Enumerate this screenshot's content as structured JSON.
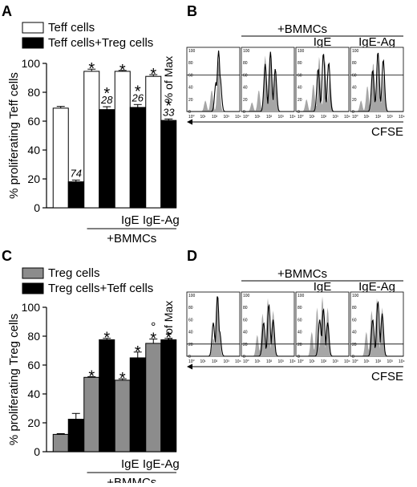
{
  "panels": {
    "A": "A",
    "B": "B",
    "C": "C",
    "D": "D"
  },
  "colors": {
    "white_bar": "#ffffff",
    "black_bar": "#000000",
    "gray_bar": "#8c8c8c",
    "histogram_fill": "#a6a6a6"
  },
  "chart_data": [
    {
      "panel": "A",
      "type": "bar",
      "ylabel": "% proliferating Teff cells",
      "ylim": [
        0,
        100
      ],
      "yticks": [
        "0",
        "20",
        "40",
        "60",
        "80",
        "100"
      ],
      "legend_position": "top-left",
      "categories": [
        "",
        "+BMMCs",
        "+BMMCs IgE",
        "+BMMCs IgE-Ag"
      ],
      "category_labels": [
        "",
        "",
        "IgE",
        "IgE-Ag"
      ],
      "group_label": "+BMMCs",
      "series": [
        {
          "name": "Teff cells",
          "style": "white",
          "values": [
            69,
            94.5,
            94.5,
            91
          ],
          "errors": [
            1.2,
            1.5,
            0.6,
            1.2
          ],
          "marks": [
            "",
            "*",
            "*",
            "*"
          ],
          "labels": [
            "",
            "",
            "",
            ""
          ]
        },
        {
          "name": "Teff cells+Treg cells",
          "style": "black",
          "values": [
            18,
            68,
            69.5,
            60.5
          ],
          "errors": [
            1.2,
            2,
            2,
            1
          ],
          "marks": [
            "",
            "*",
            "*",
            "*"
          ],
          "labels": [
            "74",
            "28",
            "26",
            "33"
          ]
        }
      ]
    },
    {
      "panel": "C",
      "type": "bar",
      "ylabel": "% proliferating Treg cells",
      "ylim": [
        0,
        100
      ],
      "yticks": [
        "0",
        "20",
        "40",
        "60",
        "80",
        "100"
      ],
      "legend_position": "top-left",
      "categories": [
        "",
        "+BMMCs",
        "+BMMCs IgE",
        "+BMMCs IgE-Ag"
      ],
      "category_labels": [
        "",
        "",
        "IgE",
        "IgE-Ag"
      ],
      "group_label": "+BMMCs",
      "series": [
        {
          "name": "Treg cells",
          "style": "gray",
          "values": [
            12,
            51.5,
            49.5,
            75
          ],
          "errors": [
            0.5,
            0.5,
            1,
            3
          ],
          "marks": [
            "",
            "*",
            "*",
            "*"
          ],
          "extra_marks": [
            "",
            "",
            "",
            "°"
          ],
          "labels": [
            "",
            "",
            "",
            ""
          ]
        },
        {
          "name": "Treg cells+Teff cells",
          "style": "black",
          "values": [
            22.5,
            77.5,
            65,
            77.5
          ],
          "errors": [
            4,
            1,
            4,
            1
          ],
          "marks": [
            "",
            "*",
            "*",
            "*"
          ],
          "labels": [
            "",
            "",
            "",
            ""
          ]
        }
      ]
    }
  ],
  "histograms": [
    {
      "panel": "B",
      "group_label": "+BMMCs",
      "ylabel": "% of Max",
      "xlabel": "CFSE",
      "yticks": [
        "0",
        "20",
        "40",
        "60",
        "80",
        "100"
      ],
      "xticks": [
        "10⁰",
        "10¹",
        "10²",
        "10³",
        "10⁴"
      ],
      "subpanel_labels": [
        "",
        "",
        "IgE",
        "IgE-Ag"
      ],
      "subpanels": [
        {
          "gate_y": 60,
          "black_peaks": [
            [
              0.55,
              48
            ],
            [
              0.6,
              100
            ],
            [
              0.63,
              55
            ]
          ],
          "gray_peaks": [
            [
              0.35,
              18
            ],
            [
              0.47,
              35
            ],
            [
              0.6,
              85
            ]
          ]
        },
        {
          "gate_y": 60,
          "black_peaks": [
            [
              0.45,
              78
            ],
            [
              0.55,
              98
            ],
            [
              0.64,
              70
            ]
          ],
          "gray_peaks": [
            [
              0.2,
              15
            ],
            [
              0.33,
              35
            ],
            [
              0.45,
              92
            ],
            [
              0.55,
              88
            ],
            [
              0.64,
              60
            ]
          ]
        },
        {
          "gate_y": 60,
          "black_peaks": [
            [
              0.42,
              70
            ],
            [
              0.52,
              96
            ],
            [
              0.62,
              80
            ]
          ],
          "gray_peaks": [
            [
              0.2,
              20
            ],
            [
              0.33,
              45
            ],
            [
              0.44,
              90
            ],
            [
              0.55,
              84
            ],
            [
              0.64,
              55
            ]
          ]
        },
        {
          "gate_y": 60,
          "black_peaks": [
            [
              0.42,
              68
            ],
            [
              0.52,
              98
            ],
            [
              0.62,
              85
            ]
          ],
          "gray_peaks": [
            [
              0.2,
              18
            ],
            [
              0.32,
              42
            ],
            [
              0.43,
              80
            ],
            [
              0.53,
              90
            ],
            [
              0.63,
              62
            ]
          ]
        }
      ]
    },
    {
      "panel": "D",
      "group_label": "+BMMCs",
      "ylabel": "% of Max",
      "xlabel": "CFSE",
      "yticks": [
        "0",
        "20",
        "40",
        "60",
        "80",
        "100"
      ],
      "xticks": [
        "10⁰",
        "10¹",
        "10²",
        "10³",
        "10⁴"
      ],
      "subpanel_labels": [
        "",
        "",
        "IgE",
        "IgE-Ag"
      ],
      "subpanels": [
        {
          "gate_y": 20,
          "black_peaks": [
            [
              0.5,
              55
            ],
            [
              0.58,
              100
            ],
            [
              0.62,
              40
            ]
          ],
          "gray_peaks": [
            [
              0.5,
              30
            ],
            [
              0.57,
              100
            ],
            [
              0.6,
              60
            ]
          ]
        },
        {
          "gate_y": 20,
          "black_peaks": [
            [
              0.42,
              55
            ],
            [
              0.52,
              85
            ],
            [
              0.6,
              60
            ]
          ],
          "gray_peaks": [
            [
              0.3,
              35
            ],
            [
              0.4,
              70
            ],
            [
              0.5,
              95
            ],
            [
              0.6,
              75
            ]
          ]
        },
        {
          "gate_y": 20,
          "black_peaks": [
            [
              0.45,
              60
            ],
            [
              0.52,
              78
            ],
            [
              0.6,
              55
            ]
          ],
          "gray_peaks": [
            [
              0.3,
              40
            ],
            [
              0.4,
              80
            ],
            [
              0.5,
              98
            ],
            [
              0.6,
              80
            ]
          ]
        },
        {
          "gate_y": 20,
          "black_peaks": [
            [
              0.42,
              60
            ],
            [
              0.52,
              90
            ],
            [
              0.6,
              70
            ]
          ],
          "gray_peaks": [
            [
              0.3,
              40
            ],
            [
              0.4,
              75
            ],
            [
              0.5,
              95
            ],
            [
              0.6,
              80
            ]
          ]
        }
      ]
    }
  ]
}
